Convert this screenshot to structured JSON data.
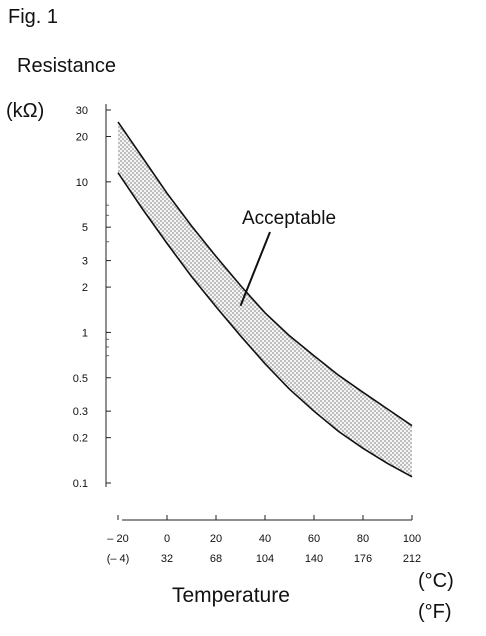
{
  "figure_label": "Fig. 1",
  "chart_data": {
    "type": "area",
    "title": "",
    "ylabel": "Resistance",
    "yunit": "(kΩ)",
    "xlabel": "Temperature",
    "xunit_c": "(°C)",
    "xunit_f": "(°F)",
    "y_scale": "log",
    "ylim": [
      0.1,
      30
    ],
    "xlim": [
      -20,
      100
    ],
    "grid": false,
    "y_tick_values": [
      30,
      20,
      10,
      5,
      3,
      2,
      1,
      0.5,
      0.3,
      0.2,
      0.1
    ],
    "y_tick_labels": [
      "30",
      "20",
      "10",
      "5",
      "3",
      "2",
      "1",
      "0.5",
      "0.3",
      "0.2",
      "0.1"
    ],
    "y_minor_ticks": [
      7,
      6,
      4,
      0.9,
      0.8,
      0.7
    ],
    "x_ticks_c": [
      -20,
      0,
      20,
      40,
      60,
      80,
      100
    ],
    "x_tick_labels_c": [
      "– 20",
      "0",
      "20",
      "40",
      "60",
      "80",
      "100"
    ],
    "x_tick_labels_f": [
      "(– 4)",
      "32",
      "68",
      "104",
      "140",
      "176",
      "212"
    ],
    "series": [
      {
        "role": "upper",
        "x": [
          -20,
          -10,
          0,
          10,
          20,
          30,
          40,
          50,
          60,
          70,
          80,
          90,
          100
        ],
        "values": [
          25,
          14.5,
          8.4,
          5.1,
          3.2,
          2.05,
          1.35,
          0.95,
          0.7,
          0.52,
          0.4,
          0.31,
          0.24
        ]
      },
      {
        "role": "lower",
        "x": [
          -20,
          -10,
          0,
          10,
          20,
          30,
          40,
          50,
          60,
          70,
          80,
          90,
          100
        ],
        "values": [
          11.5,
          6.6,
          3.9,
          2.35,
          1.48,
          0.95,
          0.62,
          0.42,
          0.3,
          0.22,
          0.17,
          0.135,
          0.11
        ]
      }
    ],
    "annotation": {
      "text": "Acceptable",
      "points_to_x": 30,
      "points_to_y": 1.5
    }
  }
}
